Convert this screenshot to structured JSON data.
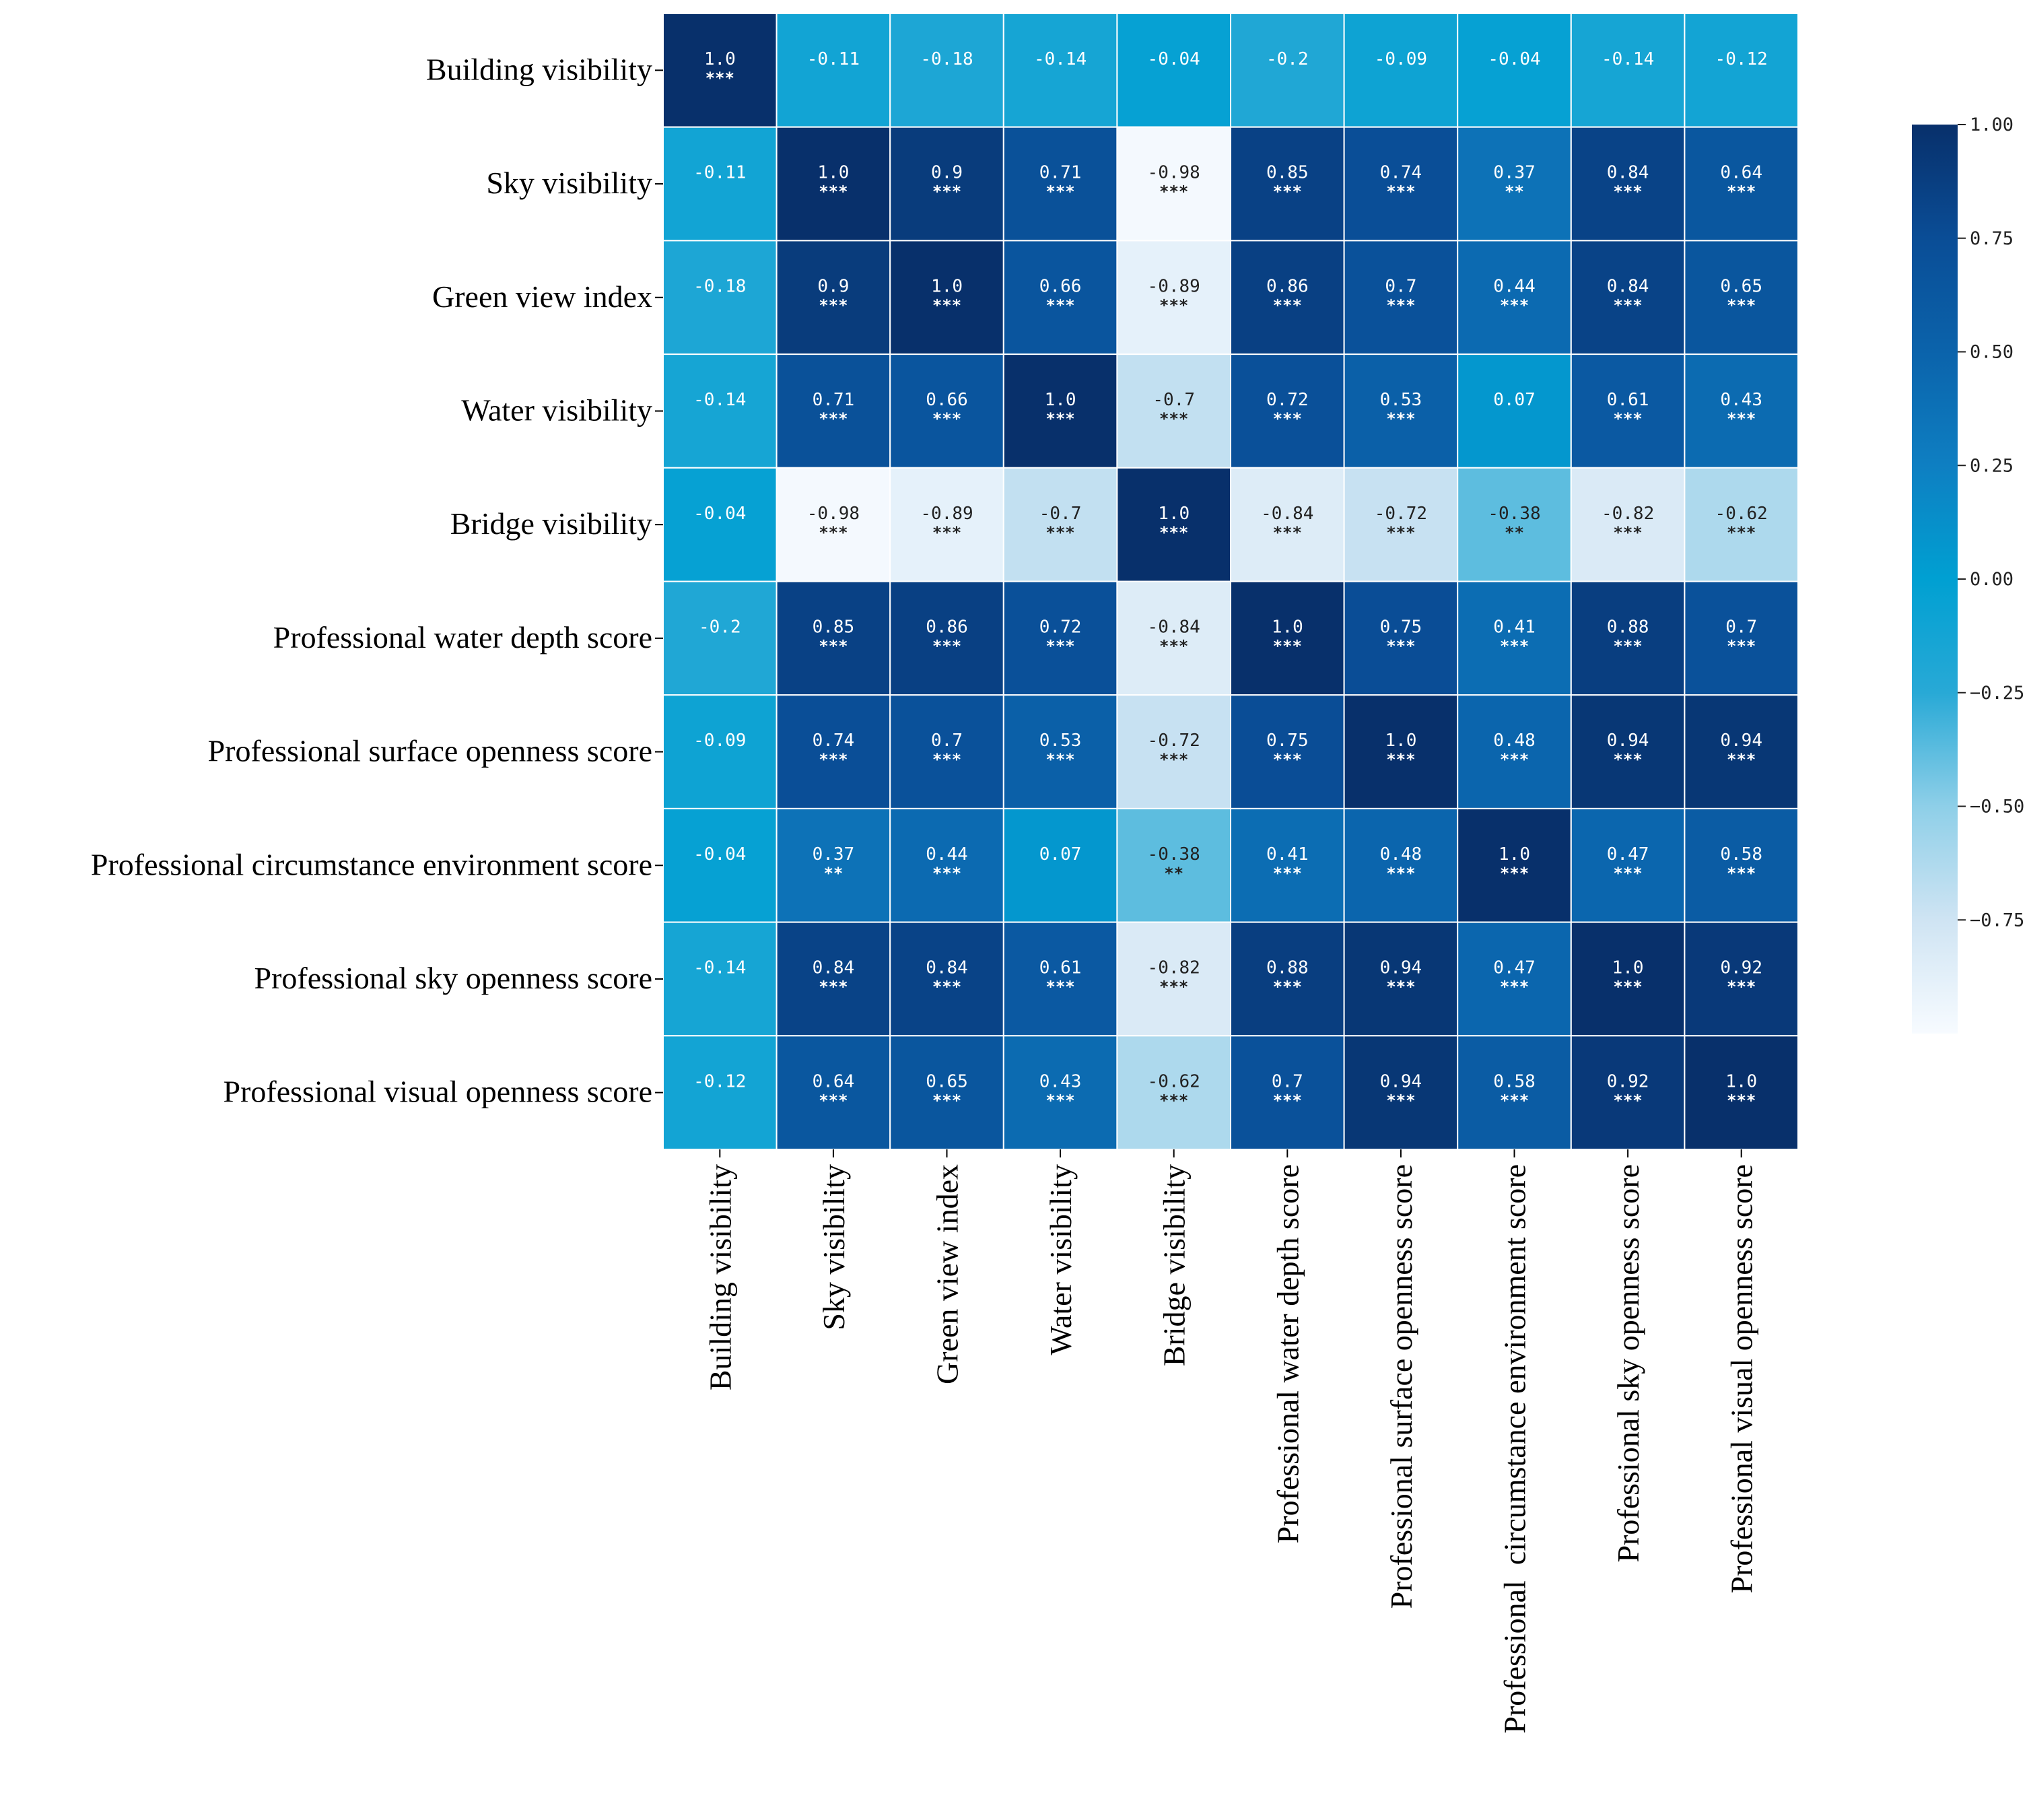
{
  "chart_data": {
    "type": "heatmap",
    "labels": [
      "Building visibility",
      "Sky visibility",
      "Green view index",
      "Water visibility",
      "Bridge visibility",
      "Professional water depth score",
      "Professional surface openness score",
      "Professional circumstance environment score",
      "Professional sky openness score",
      "Professional visual openness score"
    ],
    "col_labels": [
      "Building visibility",
      "Sky visibility",
      "Green view index",
      "Water visibility",
      "Bridge visibility",
      "Professional water depth score",
      "Professional surface openness score",
      "Professional  circumstance environment score",
      "Professional sky openness score",
      "Professional visual openness score"
    ],
    "values": [
      [
        1.0,
        -0.11,
        -0.18,
        -0.14,
        -0.04,
        -0.2,
        -0.09,
        -0.04,
        -0.14,
        -0.12
      ],
      [
        -0.11,
        1.0,
        0.9,
        0.71,
        -0.98,
        0.85,
        0.74,
        0.37,
        0.84,
        0.64
      ],
      [
        -0.18,
        0.9,
        1.0,
        0.66,
        -0.89,
        0.86,
        0.7,
        0.44,
        0.84,
        0.65
      ],
      [
        -0.14,
        0.71,
        0.66,
        1.0,
        -0.7,
        0.72,
        0.53,
        0.07,
        0.61,
        0.43
      ],
      [
        -0.04,
        -0.98,
        -0.89,
        -0.7,
        1.0,
        -0.84,
        -0.72,
        -0.38,
        -0.82,
        -0.62
      ],
      [
        -0.2,
        0.85,
        0.86,
        0.72,
        -0.84,
        1.0,
        0.75,
        0.41,
        0.88,
        0.7
      ],
      [
        -0.09,
        0.74,
        0.7,
        0.53,
        -0.72,
        0.75,
        1.0,
        0.48,
        0.94,
        0.94
      ],
      [
        -0.04,
        0.37,
        0.44,
        0.07,
        -0.38,
        0.41,
        0.48,
        1.0,
        0.47,
        0.58
      ],
      [
        -0.14,
        0.84,
        0.84,
        0.61,
        -0.82,
        0.88,
        0.94,
        0.47,
        1.0,
        0.92
      ],
      [
        -0.12,
        0.64,
        0.65,
        0.43,
        -0.62,
        0.7,
        0.94,
        0.58,
        0.92,
        1.0
      ]
    ],
    "value_labels": [
      [
        "1.0",
        "-0.11",
        "-0.18",
        "-0.14",
        "-0.04",
        "-0.2",
        "-0.09",
        "-0.04",
        "-0.14",
        "-0.12"
      ],
      [
        "-0.11",
        "1.0",
        "0.9",
        "0.71",
        "-0.98",
        "0.85",
        "0.74",
        "0.37",
        "0.84",
        "0.64"
      ],
      [
        "-0.18",
        "0.9",
        "1.0",
        "0.66",
        "-0.89",
        "0.86",
        "0.7",
        "0.44",
        "0.84",
        "0.65"
      ],
      [
        "-0.14",
        "0.71",
        "0.66",
        "1.0",
        "-0.7",
        "0.72",
        "0.53",
        "0.07",
        "0.61",
        "0.43"
      ],
      [
        "-0.04",
        "-0.98",
        "-0.89",
        "-0.7",
        "1.0",
        "-0.84",
        "-0.72",
        "-0.38",
        "-0.82",
        "-0.62"
      ],
      [
        "-0.2",
        "0.85",
        "0.86",
        "0.72",
        "-0.84",
        "1.0",
        "0.75",
        "0.41",
        "0.88",
        "0.7"
      ],
      [
        "-0.09",
        "0.74",
        "0.7",
        "0.53",
        "-0.72",
        "0.75",
        "1.0",
        "0.48",
        "0.94",
        "0.94"
      ],
      [
        "-0.04",
        "0.37",
        "0.44",
        "0.07",
        "-0.38",
        "0.41",
        "0.48",
        "1.0",
        "0.47",
        "0.58"
      ],
      [
        "-0.14",
        "0.84",
        "0.84",
        "0.61",
        "-0.82",
        "0.88",
        "0.94",
        "0.47",
        "1.0",
        "0.92"
      ],
      [
        "-0.12",
        "0.64",
        "0.65",
        "0.43",
        "-0.62",
        "0.7",
        "0.94",
        "0.58",
        "0.92",
        "1.0"
      ]
    ],
    "significance": [
      [
        "***",
        "",
        "",
        "",
        "",
        "",
        "",
        "",
        "",
        ""
      ],
      [
        "",
        "***",
        "***",
        "***",
        "***",
        "***",
        "***",
        "**",
        "***",
        "***"
      ],
      [
        "",
        "***",
        "***",
        "***",
        "***",
        "***",
        "***",
        "***",
        "***",
        "***"
      ],
      [
        "",
        "***",
        "***",
        "***",
        "***",
        "***",
        "***",
        "",
        "***",
        "***"
      ],
      [
        "",
        "***",
        "***",
        "***",
        "***",
        "***",
        "***",
        "**",
        "***",
        "***"
      ],
      [
        "",
        "***",
        "***",
        "***",
        "***",
        "***",
        "***",
        "***",
        "***",
        "***"
      ],
      [
        "",
        "***",
        "***",
        "***",
        "***",
        "***",
        "***",
        "***",
        "***",
        "***"
      ],
      [
        "",
        "**",
        "***",
        "",
        "**",
        "***",
        "***",
        "***",
        "***",
        "***"
      ],
      [
        "",
        "***",
        "***",
        "***",
        "***",
        "***",
        "***",
        "***",
        "***",
        "***"
      ],
      [
        "",
        "***",
        "***",
        "***",
        "***",
        "***",
        "***",
        "***",
        "***",
        "***"
      ]
    ],
    "colorbar": {
      "range": [
        -1.0,
        1.0
      ],
      "ticks": [
        1.0,
        0.75,
        0.5,
        0.25,
        0.0,
        -0.25,
        -0.5,
        -0.75
      ],
      "tick_labels": [
        "1.00",
        "0.75",
        "0.50",
        "0.25",
        "0.00",
        "−0.25",
        "−0.50",
        "−0.75"
      ],
      "colormap": [
        "#f7fbff",
        "#cfe4f3",
        "#8ecfe8",
        "#28a9d6",
        "#00a0d2",
        "#0e7fc2",
        "#0b63ab",
        "#0a4d96",
        "#08306b"
      ]
    },
    "colors": {
      "light_text": "#ffffff",
      "dark_text": "#222222",
      "grid_line": "#ffffff"
    }
  }
}
